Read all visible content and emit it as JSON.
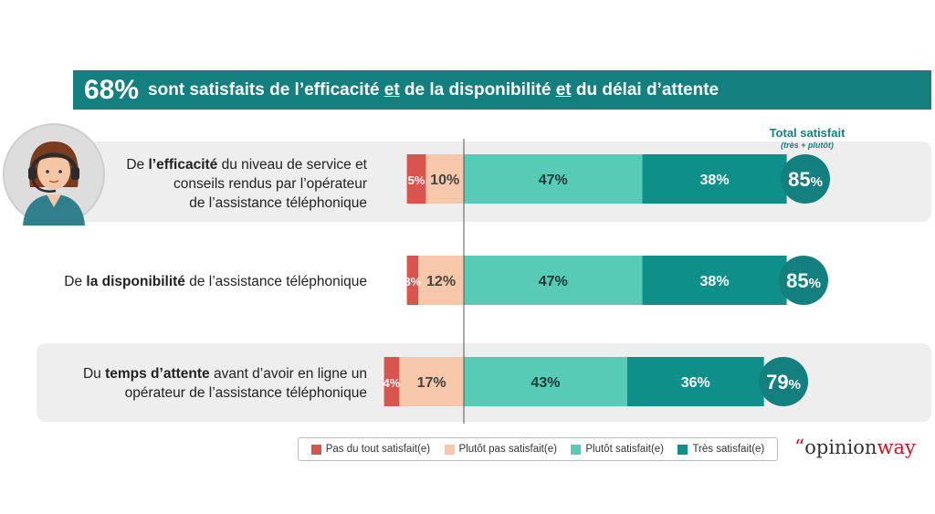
{
  "header": {
    "big": "68%",
    "text_parts": [
      "sont satisfaits de l’efficacité ",
      "et",
      " de la disponibilité ",
      "et",
      " du délai d’attente"
    ]
  },
  "rows": [
    {
      "label_parts": [
        "De ",
        "l’efficacité",
        " du niveau de service et",
        "conseils rendus par l’opérateur",
        "de l’assistance téléphonique"
      ]
    },
    {
      "label_parts": [
        "De ",
        "la disponibilité",
        " de l’assistance téléphonique"
      ]
    },
    {
      "label_parts": [
        "Du ",
        "temps d’attente",
        " avant d’avoir en ligne un",
        "opérateur de l’assistance téléphonique"
      ]
    }
  ],
  "total": {
    "title": "Total satisfait",
    "subtitle": "(très + plutôt)"
  },
  "chart_data": {
    "type": "bar",
    "orientation": "horizontal-diverging",
    "categories": [
      "efficacité",
      "disponibilité",
      "temps d’attente"
    ],
    "series": [
      {
        "name": "Pas du tout satisfait(e)",
        "values": [
          5,
          3,
          4
        ],
        "labels": [
          "5%",
          "3%",
          "4%"
        ],
        "color": "#d9534f"
      },
      {
        "name": "Plutôt pas satisfait(e)",
        "values": [
          10,
          12,
          17
        ],
        "labels": [
          "10%",
          "12%",
          "17%"
        ],
        "color": "#f6c7a8"
      },
      {
        "name": "Plutôt satisfait(e)",
        "values": [
          47,
          47,
          43
        ],
        "labels": [
          "47%",
          "47%",
          "43%"
        ],
        "color": "#57cbb6"
      },
      {
        "name": "Très satisfait(e)",
        "values": [
          38,
          38,
          36
        ],
        "labels": [
          "38%",
          "38%",
          "36%"
        ],
        "color": "#0f8f8a"
      }
    ],
    "totals": [
      {
        "value": "85",
        "unit": "%"
      },
      {
        "value": "85",
        "unit": "%"
      },
      {
        "value": "79",
        "unit": "%"
      }
    ],
    "total_color": "#137f7f"
  },
  "logo": {
    "quote": "“",
    "opinion": "opinion",
    "way": "way"
  }
}
